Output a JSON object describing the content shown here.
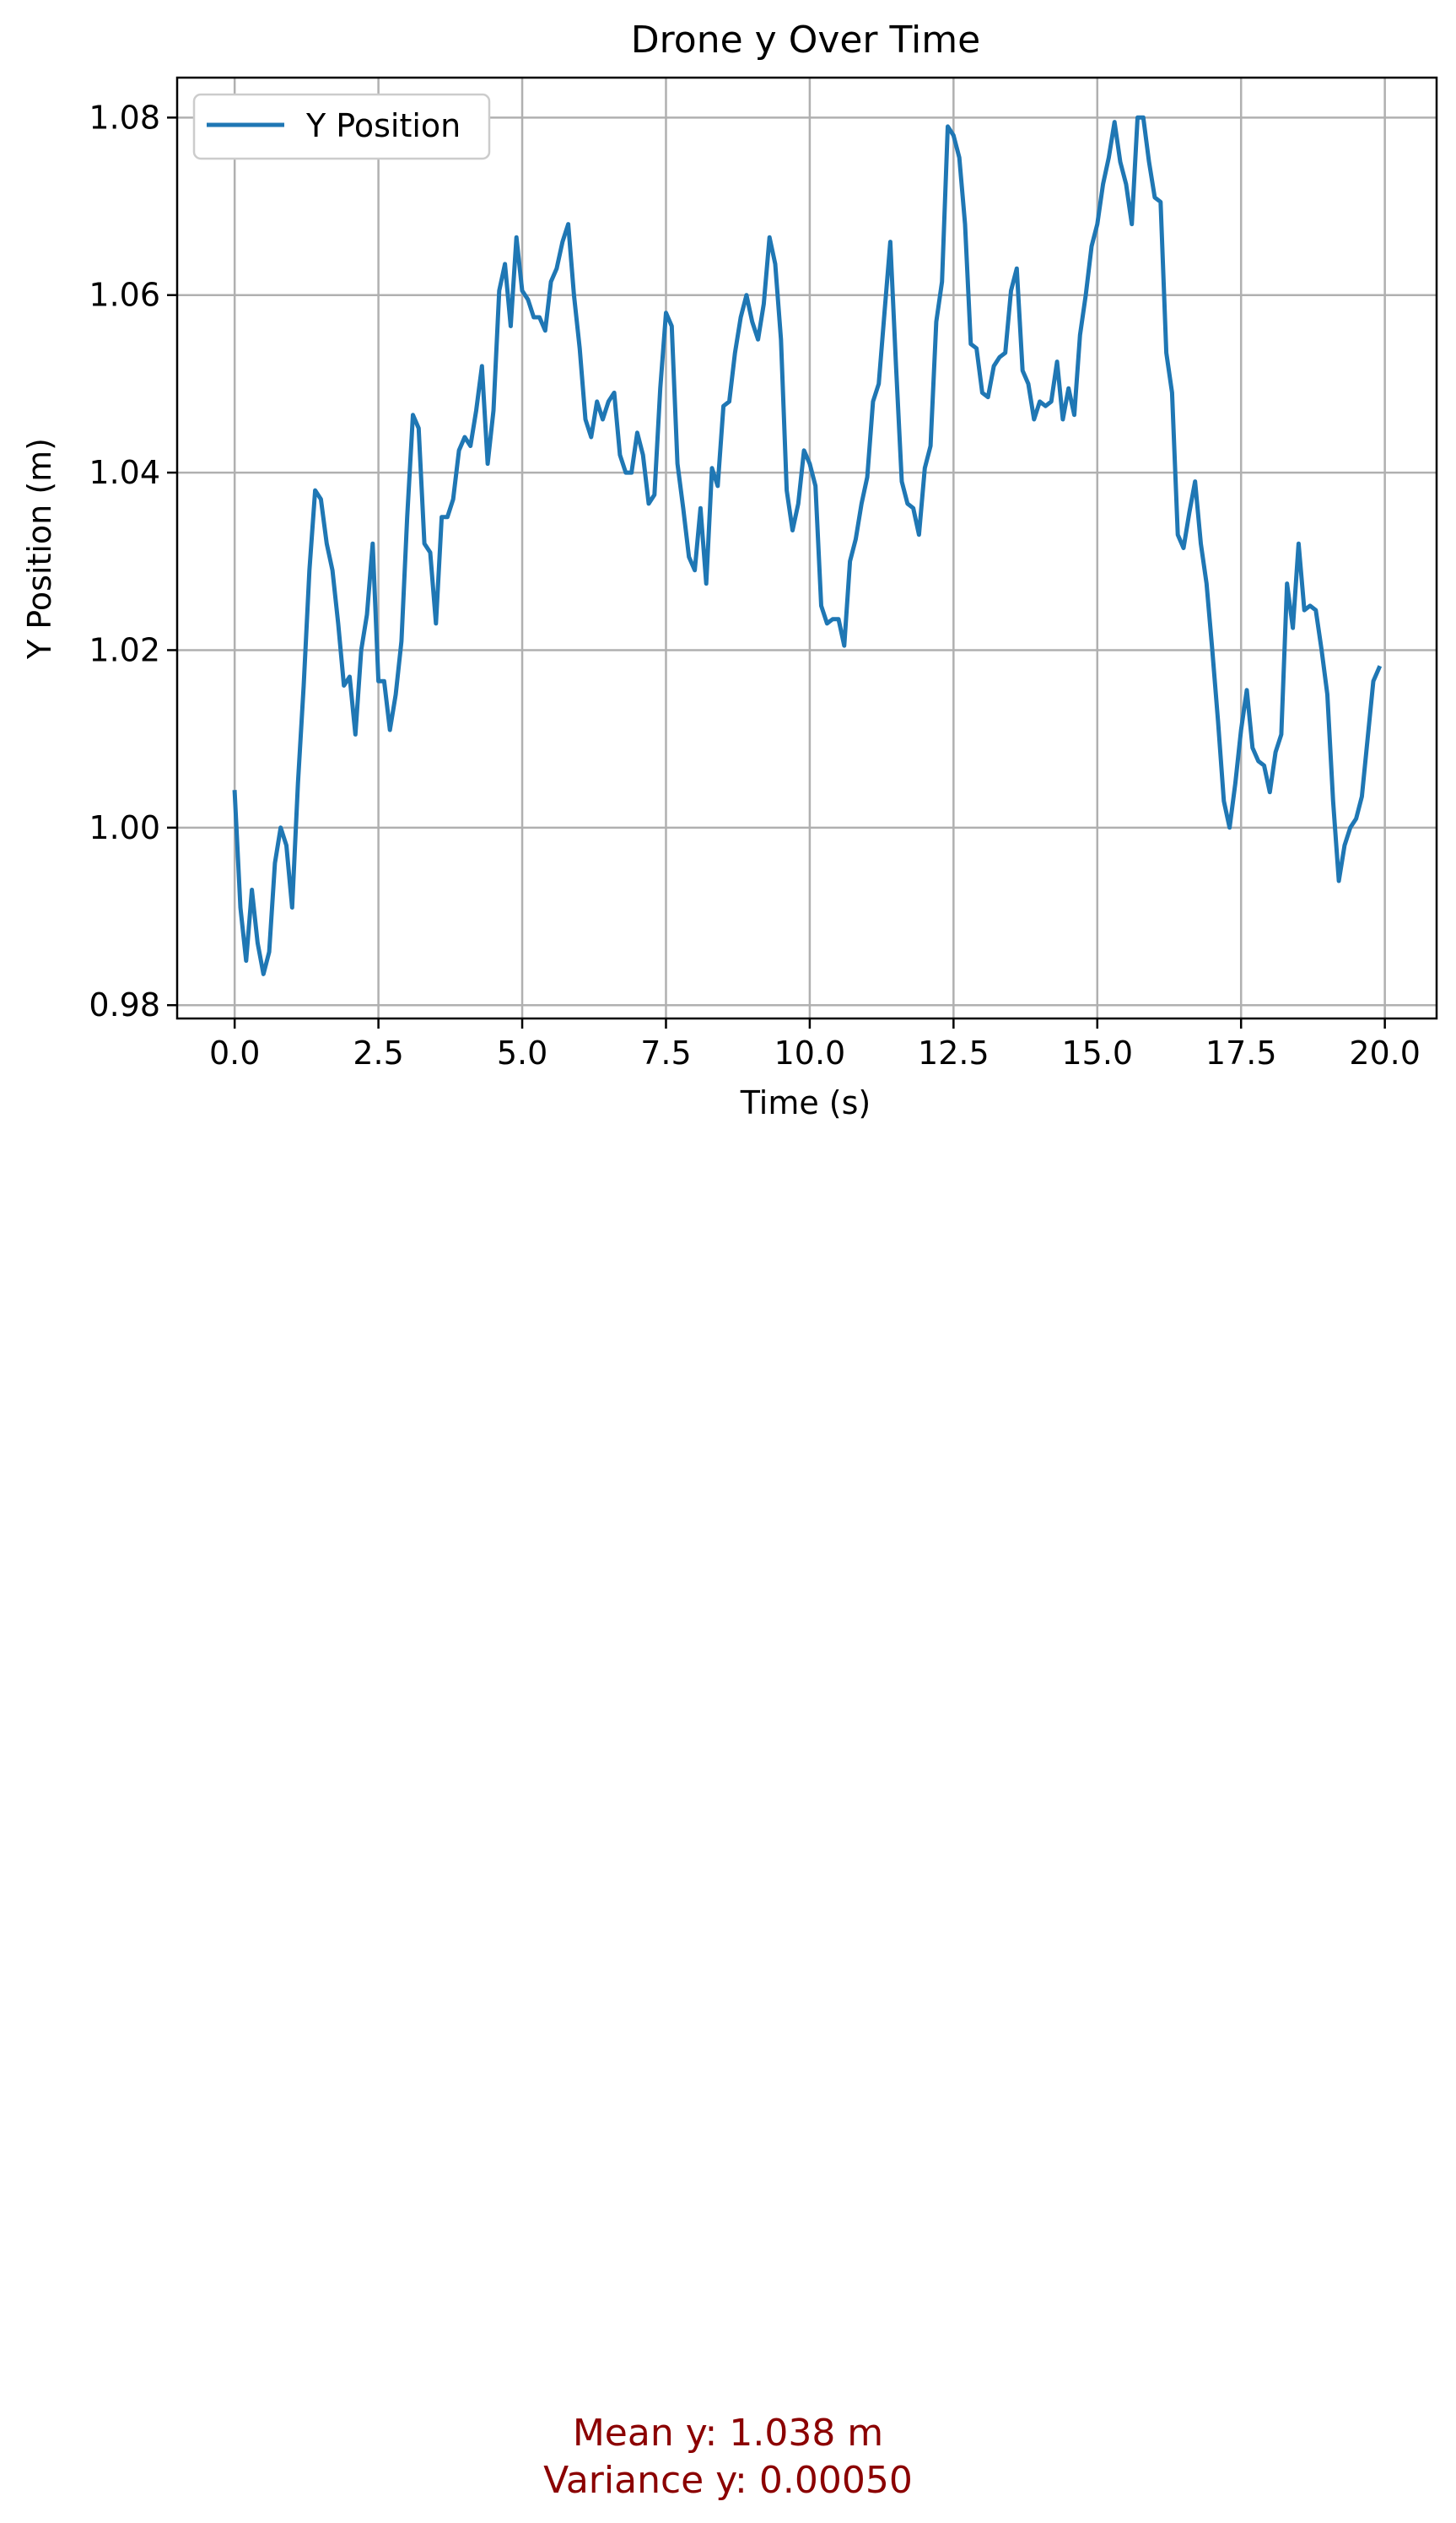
{
  "chart_data": {
    "type": "line",
    "title": "Drone y Over Time",
    "xlabel": "Time (s)",
    "ylabel": "Y Position (m)",
    "xlim": [
      -1.0,
      20.9
    ],
    "ylim": [
      0.9785,
      1.0845
    ],
    "xticks": [
      "0.0",
      "2.5",
      "5.0",
      "7.5",
      "10.0",
      "12.5",
      "15.0",
      "17.5",
      "20.0"
    ],
    "yticks": [
      "0.98",
      "1.00",
      "1.02",
      "1.04",
      "1.06",
      "1.08"
    ],
    "grid": true,
    "legend_position": "top-left",
    "series": [
      {
        "name": "Y Position",
        "color": "#1f77b4",
        "points": [
          [
            0.0,
            1.004
          ],
          [
            0.1,
            0.991
          ],
          [
            0.2,
            0.985
          ],
          [
            0.3,
            0.993
          ],
          [
            0.4,
            0.987
          ],
          [
            0.5,
            0.9835
          ],
          [
            0.6,
            0.986
          ],
          [
            0.7,
            0.996
          ],
          [
            0.8,
            1.0
          ],
          [
            0.9,
            0.998
          ],
          [
            1.0,
            0.991
          ],
          [
            1.1,
            1.005
          ],
          [
            1.2,
            1.016
          ],
          [
            1.3,
            1.029
          ],
          [
            1.4,
            1.038
          ],
          [
            1.5,
            1.037
          ],
          [
            1.6,
            1.032
          ],
          [
            1.7,
            1.029
          ],
          [
            1.8,
            1.023
          ],
          [
            1.9,
            1.016
          ],
          [
            2.0,
            1.017
          ],
          [
            2.1,
            1.0105
          ],
          [
            2.2,
            1.02
          ],
          [
            2.3,
            1.024
          ],
          [
            2.4,
            1.032
          ],
          [
            2.5,
            1.0165
          ],
          [
            2.6,
            1.0165
          ],
          [
            2.7,
            1.011
          ],
          [
            2.8,
            1.015
          ],
          [
            2.9,
            1.021
          ],
          [
            3.0,
            1.035
          ],
          [
            3.1,
            1.0465
          ],
          [
            3.2,
            1.045
          ],
          [
            3.3,
            1.032
          ],
          [
            3.4,
            1.031
          ],
          [
            3.5,
            1.023
          ],
          [
            3.6,
            1.035
          ],
          [
            3.7,
            1.035
          ],
          [
            3.8,
            1.037
          ],
          [
            3.9,
            1.0425
          ],
          [
            4.0,
            1.044
          ],
          [
            4.1,
            1.043
          ],
          [
            4.2,
            1.047
          ],
          [
            4.3,
            1.052
          ],
          [
            4.4,
            1.041
          ],
          [
            4.5,
            1.047
          ],
          [
            4.6,
            1.0605
          ],
          [
            4.7,
            1.0635
          ],
          [
            4.8,
            1.0565
          ],
          [
            4.9,
            1.0665
          ],
          [
            5.0,
            1.0605
          ],
          [
            5.1,
            1.0595
          ],
          [
            5.2,
            1.0575
          ],
          [
            5.3,
            1.0575
          ],
          [
            5.4,
            1.056
          ],
          [
            5.5,
            1.0615
          ],
          [
            5.6,
            1.063
          ],
          [
            5.7,
            1.066
          ],
          [
            5.8,
            1.068
          ],
          [
            5.9,
            1.06
          ],
          [
            6.0,
            1.054
          ],
          [
            6.1,
            1.046
          ],
          [
            6.2,
            1.044
          ],
          [
            6.3,
            1.048
          ],
          [
            6.4,
            1.046
          ],
          [
            6.5,
            1.048
          ],
          [
            6.6,
            1.049
          ],
          [
            6.7,
            1.042
          ],
          [
            6.8,
            1.04
          ],
          [
            6.9,
            1.04
          ],
          [
            7.0,
            1.0445
          ],
          [
            7.1,
            1.042
          ],
          [
            7.2,
            1.0365
          ],
          [
            7.3,
            1.0375
          ],
          [
            7.4,
            1.0495
          ],
          [
            7.5,
            1.058
          ],
          [
            7.6,
            1.0565
          ],
          [
            7.7,
            1.041
          ],
          [
            7.8,
            1.036
          ],
          [
            7.9,
            1.0305
          ],
          [
            8.0,
            1.029
          ],
          [
            8.1,
            1.036
          ],
          [
            8.2,
            1.0275
          ],
          [
            8.3,
            1.0405
          ],
          [
            8.4,
            1.0385
          ],
          [
            8.5,
            1.0475
          ],
          [
            8.6,
            1.048
          ],
          [
            8.7,
            1.0535
          ],
          [
            8.8,
            1.0575
          ],
          [
            8.9,
            1.06
          ],
          [
            9.0,
            1.057
          ],
          [
            9.1,
            1.055
          ],
          [
            9.2,
            1.059
          ],
          [
            9.3,
            1.0665
          ],
          [
            9.4,
            1.0635
          ],
          [
            9.5,
            1.055
          ],
          [
            9.6,
            1.038
          ],
          [
            9.7,
            1.0335
          ],
          [
            9.8,
            1.0365
          ],
          [
            9.9,
            1.0425
          ],
          [
            10.0,
            1.041
          ],
          [
            10.1,
            1.0385
          ],
          [
            10.2,
            1.025
          ],
          [
            10.3,
            1.023
          ],
          [
            10.4,
            1.0235
          ],
          [
            10.5,
            1.0235
          ],
          [
            10.6,
            1.0205
          ],
          [
            10.7,
            1.03
          ],
          [
            10.8,
            1.0325
          ],
          [
            10.9,
            1.0365
          ],
          [
            11.0,
            1.0395
          ],
          [
            11.1,
            1.048
          ],
          [
            11.2,
            1.05
          ],
          [
            11.3,
            1.058
          ],
          [
            11.4,
            1.066
          ],
          [
            11.5,
            1.052
          ],
          [
            11.6,
            1.039
          ],
          [
            11.7,
            1.0365
          ],
          [
            11.8,
            1.036
          ],
          [
            11.9,
            1.033
          ],
          [
            12.0,
            1.0405
          ],
          [
            12.1,
            1.043
          ],
          [
            12.2,
            1.057
          ],
          [
            12.3,
            1.0615
          ],
          [
            12.4,
            1.079
          ],
          [
            12.5,
            1.078
          ],
          [
            12.6,
            1.0755
          ],
          [
            12.7,
            1.068
          ],
          [
            12.8,
            1.0545
          ],
          [
            12.9,
            1.054
          ],
          [
            13.0,
            1.049
          ],
          [
            13.1,
            1.0485
          ],
          [
            13.2,
            1.052
          ],
          [
            13.3,
            1.053
          ],
          [
            13.4,
            1.0535
          ],
          [
            13.5,
            1.0605
          ],
          [
            13.6,
            1.063
          ],
          [
            13.7,
            1.0515
          ],
          [
            13.8,
            1.05
          ],
          [
            13.9,
            1.046
          ],
          [
            14.0,
            1.048
          ],
          [
            14.1,
            1.0475
          ],
          [
            14.2,
            1.048
          ],
          [
            14.3,
            1.0525
          ],
          [
            14.4,
            1.046
          ],
          [
            14.5,
            1.0495
          ],
          [
            14.6,
            1.0465
          ],
          [
            14.7,
            1.0555
          ],
          [
            14.8,
            1.06
          ],
          [
            14.9,
            1.0655
          ],
          [
            15.0,
            1.068
          ],
          [
            15.1,
            1.0725
          ],
          [
            15.2,
            1.0755
          ],
          [
            15.3,
            1.0795
          ],
          [
            15.4,
            1.075
          ],
          [
            15.5,
            1.0725
          ],
          [
            15.6,
            1.068
          ],
          [
            15.7,
            1.08
          ],
          [
            15.8,
            1.08
          ],
          [
            15.9,
            1.075
          ],
          [
            16.0,
            1.071
          ],
          [
            16.1,
            1.0705
          ],
          [
            16.2,
            1.0535
          ],
          [
            16.3,
            1.049
          ],
          [
            16.4,
            1.033
          ],
          [
            16.5,
            1.0315
          ],
          [
            16.6,
            1.0355
          ],
          [
            16.7,
            1.039
          ],
          [
            16.8,
            1.032
          ],
          [
            16.9,
            1.0275
          ],
          [
            17.0,
            1.02
          ],
          [
            17.1,
            1.012
          ],
          [
            17.2,
            1.003
          ],
          [
            17.3,
            1.0
          ],
          [
            17.4,
            1.005
          ],
          [
            17.5,
            1.011
          ],
          [
            17.6,
            1.0155
          ],
          [
            17.7,
            1.009
          ],
          [
            17.8,
            1.0075
          ],
          [
            17.9,
            1.007
          ],
          [
            18.0,
            1.004
          ],
          [
            18.1,
            1.0085
          ],
          [
            18.2,
            1.0105
          ],
          [
            18.3,
            1.0275
          ],
          [
            18.4,
            1.0225
          ],
          [
            18.5,
            1.032
          ],
          [
            18.6,
            1.0245
          ],
          [
            18.7,
            1.025
          ],
          [
            18.8,
            1.0245
          ],
          [
            18.9,
            1.02
          ],
          [
            19.0,
            1.015
          ],
          [
            19.1,
            1.003
          ],
          [
            19.2,
            0.994
          ],
          [
            19.3,
            0.998
          ],
          [
            19.4,
            1.0
          ],
          [
            19.5,
            1.001
          ],
          [
            19.6,
            1.0035
          ],
          [
            19.7,
            1.01
          ],
          [
            19.8,
            1.0165
          ],
          [
            19.9,
            1.018
          ]
        ]
      }
    ]
  },
  "stats": {
    "mean": "Mean y: 1.038 m",
    "variance": "Variance y: 0.00050"
  }
}
